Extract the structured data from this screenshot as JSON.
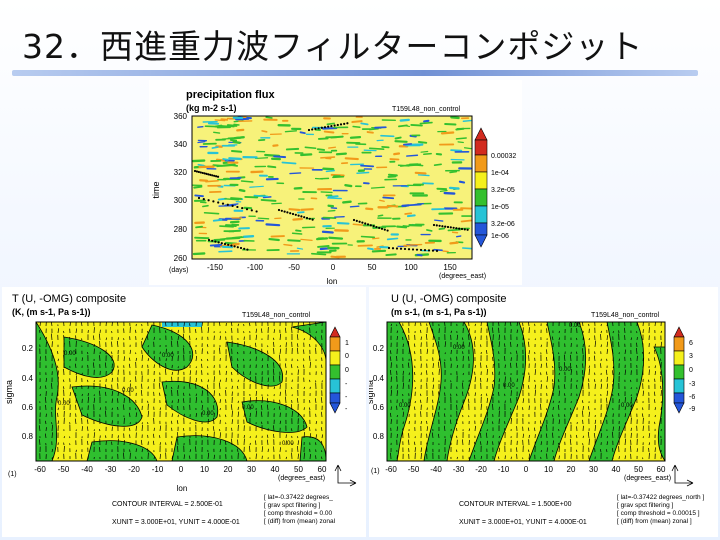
{
  "slide": {
    "title": "32．西進重力波フィルターコンポジット"
  },
  "top_plot": {
    "title": "precipitation flux",
    "units": "(kg m-2 s-1)",
    "run": "T159L48_non_control",
    "y_label": "time",
    "y_ticks": [
      "360",
      "340",
      "320",
      "300",
      "280",
      "260"
    ],
    "x_unit_left": "(days)",
    "x_ticks": [
      "-150",
      "-100",
      "-50",
      "0",
      "50",
      "100",
      "150"
    ],
    "x_unit_right": "(degrees_east)",
    "x_label": "lon",
    "legend": [
      "0.00032",
      "1e-04",
      "3.2e-05",
      "1e-05",
      "3.2e-06",
      "1e-06"
    ],
    "colors": {
      "high": "#d22b1f",
      "orange": "#f19a1a",
      "yellow": "#f5f01c",
      "green": "#34c02e",
      "cyan": "#27c3d6",
      "blue": "#2456d9"
    }
  },
  "left_plot": {
    "title": "T (U, -OMG) composite",
    "units": "(K, (m s-1, Pa s-1))",
    "run": "T159L48_non_control",
    "y_label": "sigma",
    "y_ticks": [
      "0.2",
      "0.4",
      "0.6",
      "0.8"
    ],
    "x_ticks": [
      "-60",
      "-50",
      "-40",
      "-30",
      "-20",
      "-10",
      "0",
      "10",
      "20",
      "30",
      "40",
      "50",
      "60"
    ],
    "x_unit_left": "(1)",
    "x_unit_right": "(degrees_east)",
    "x_label": "lon",
    "legend": [
      "1",
      "0",
      "0",
      "-",
      "-",
      "-"
    ],
    "contour_interval": "CONTOUR INTERVAL = 2.500E-01",
    "units_line": "XUNIT = 3.000E+01, YUNIT = 4.000E-01",
    "notes": [
      "[ lat=-0.37422 degrees_",
      "[ grav spct filtering ]",
      "[ comp threshold = 0.00",
      "[ (diff) from (mean) zonal"
    ],
    "contour_labels": [
      "0.00",
      "0.00",
      "0.00",
      "0.00",
      "0.00",
      "0.00",
      "0.00"
    ]
  },
  "right_plot": {
    "title": "U (U, -OMG) composite",
    "units": "(m s-1, (m s-1, Pa s-1))",
    "run": "T159L48_non_control",
    "y_label": "sigma",
    "y_ticks": [
      "0.2",
      "0.4",
      "0.6",
      "0.8"
    ],
    "x_ticks": [
      "-60",
      "-50",
      "-40",
      "-30",
      "-20",
      "-10",
      "0",
      "10",
      "20",
      "30",
      "40",
      "50",
      "60"
    ],
    "x_unit_left": "(1)",
    "x_unit_right": "(degrees_east)",
    "x_label": "lon",
    "legend": [
      "6",
      "3",
      "0",
      "-3",
      "-6",
      "-9"
    ],
    "contour_interval": "CONTOUR INTERVAL = 1.500E+00",
    "units_line": "XUNIT = 3.000E+01, YUNIT = 4.000E-01",
    "notes": [
      "[ lat=-0.37422 degrees_north ]",
      "[ grav spct filtering ]",
      "[ comp threshold = 0.00015 ]",
      "[ (diff) from (mean) zonal ]"
    ],
    "contour_labels": [
      "0.00",
      "0.00",
      "0.00",
      "0.00",
      "0.00",
      "0.00"
    ]
  }
}
